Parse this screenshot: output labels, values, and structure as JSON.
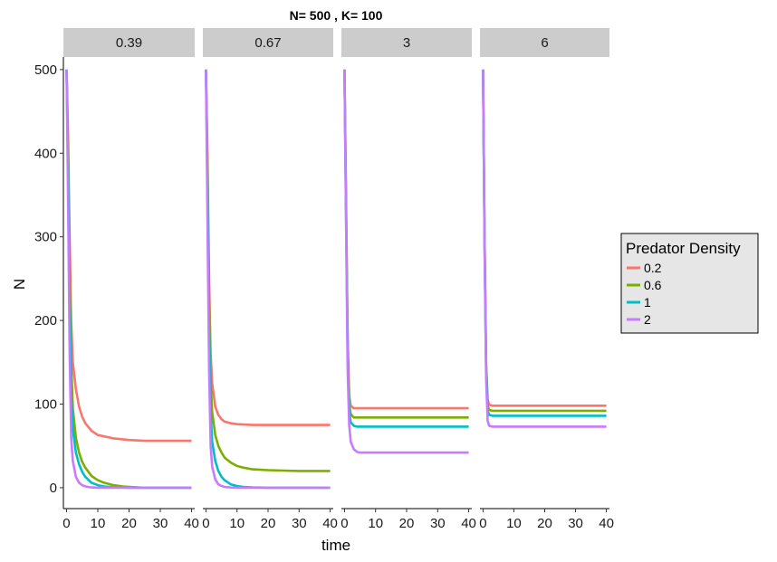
{
  "chart_data": {
    "type": "line",
    "title": "N= 500 , K= 100",
    "xlabel": "time",
    "ylabel": "N",
    "xlim": [
      -1,
      41
    ],
    "ylim": [
      -25,
      515
    ],
    "x_ticks": [
      0,
      10,
      20,
      30,
      40
    ],
    "y_ticks": [
      0,
      100,
      200,
      300,
      400,
      500
    ],
    "grid": false,
    "legend": {
      "title": "Predator Density",
      "placement": "right",
      "entries": [
        {
          "label": "0.2",
          "color": "#F8766D"
        },
        {
          "label": "0.6",
          "color": "#7CAE00"
        },
        {
          "label": "1",
          "color": "#00BFC4"
        },
        {
          "label": "2",
          "color": "#C77CFF"
        }
      ]
    },
    "facets": [
      {
        "label": "0.39",
        "series": [
          {
            "name": "0.2",
            "x": [
              0,
              0.5,
              1,
              1.5,
              2,
              3,
              4,
              5,
              6,
              8,
              10,
              15,
              20,
              25,
              30,
              40
            ],
            "y": [
              500,
              420,
              300,
              200,
              150,
              118,
              97,
              85,
              77,
              68,
              63,
              59,
              57,
              56,
              56,
              56
            ]
          },
          {
            "name": "0.6",
            "x": [
              0,
              0.5,
              1,
              1.5,
              2,
              3,
              4,
              5,
              6,
              8,
              10,
              12,
              15,
              18,
              20,
              25,
              30,
              40
            ],
            "y": [
              500,
              400,
              250,
              150,
              95,
              60,
              42,
              31,
              24,
              14,
              9,
              6,
              3,
              1.5,
              1,
              0,
              0,
              0
            ]
          },
          {
            "name": "1",
            "x": [
              0,
              0.5,
              1,
              1.5,
              2,
              3,
              4,
              5,
              6,
              8,
              10,
              12,
              15,
              20,
              25,
              40
            ],
            "y": [
              500,
              380,
              220,
              110,
              70,
              42,
              28,
              19,
              13,
              6,
              3,
              1.5,
              0.5,
              0,
              0,
              0
            ]
          },
          {
            "name": "2",
            "x": [
              0,
              0.5,
              1,
              1.5,
              2,
              3,
              4,
              5,
              6,
              8,
              10,
              15,
              20,
              40
            ],
            "y": [
              500,
              340,
              160,
              60,
              32,
              13,
              6,
              3,
              1.5,
              0.3,
              0,
              0,
              0,
              0
            ]
          }
        ]
      },
      {
        "label": "0.67",
        "series": [
          {
            "name": "0.2",
            "x": [
              0,
              0.5,
              1,
              1.5,
              2,
              3,
              4,
              5,
              6,
              8,
              10,
              15,
              20,
              25,
              30,
              40
            ],
            "y": [
              500,
              400,
              250,
              160,
              125,
              97,
              87,
              82,
              79,
              77,
              76,
              75,
              75,
              75,
              75,
              75
            ]
          },
          {
            "name": "0.6",
            "x": [
              0,
              0.5,
              1,
              1.5,
              2,
              3,
              4,
              5,
              6,
              8,
              10,
              12,
              15,
              20,
              25,
              30,
              40
            ],
            "y": [
              500,
              380,
              220,
              130,
              90,
              63,
              50,
              42,
              36,
              30,
              26,
              24,
              22,
              21,
              20.5,
              20,
              20
            ]
          },
          {
            "name": "1",
            "x": [
              0,
              0.5,
              1,
              1.5,
              2,
              3,
              4,
              5,
              6,
              8,
              10,
              12,
              15,
              20,
              25,
              40
            ],
            "y": [
              500,
              360,
              190,
              90,
              55,
              32,
              20,
              13,
              9,
              4,
              2,
              1,
              0.3,
              0,
              0,
              0
            ]
          },
          {
            "name": "2",
            "x": [
              0,
              0.5,
              1,
              1.5,
              2,
              3,
              4,
              5,
              6,
              8,
              10,
              15,
              20,
              40
            ],
            "y": [
              500,
              320,
              140,
              50,
              25,
              10,
              4,
              2,
              1,
              0.2,
              0,
              0,
              0,
              0
            ]
          }
        ]
      },
      {
        "label": "3",
        "series": [
          {
            "name": "0.2",
            "x": [
              0,
              0.5,
              1,
              1.5,
              2,
              3,
              4,
              5,
              40
            ],
            "y": [
              500,
              350,
              180,
              110,
              98,
              95,
              95,
              95,
              95
            ]
          },
          {
            "name": "0.6",
            "x": [
              0,
              0.5,
              1,
              1.5,
              2,
              3,
              4,
              5,
              40
            ],
            "y": [
              500,
              340,
              170,
              100,
              88,
              84,
              84,
              84,
              84
            ]
          },
          {
            "name": "1",
            "x": [
              0,
              0.5,
              1,
              1.5,
              2,
              3,
              4,
              5,
              40
            ],
            "y": [
              500,
              330,
              160,
              92,
              78,
              74,
              73,
              73,
              73
            ]
          },
          {
            "name": "2",
            "x": [
              0,
              0.5,
              1,
              1.5,
              2,
              3,
              4,
              5,
              6,
              8,
              40
            ],
            "y": [
              500,
              320,
              140,
              75,
              55,
              46,
              43,
              42,
              42,
              42,
              42
            ]
          }
        ]
      },
      {
        "label": "6",
        "series": [
          {
            "name": "0.2",
            "x": [
              0,
              0.5,
              1,
              1.5,
              2,
              3,
              40
            ],
            "y": [
              500,
              300,
              150,
              105,
              99,
              98,
              98
            ]
          },
          {
            "name": "0.6",
            "x": [
              0,
              0.5,
              1,
              1.5,
              2,
              3,
              40
            ],
            "y": [
              500,
              295,
              145,
              98,
              93,
              92,
              92
            ]
          },
          {
            "name": "1",
            "x": [
              0,
              0.5,
              1,
              1.5,
              2,
              3,
              40
            ],
            "y": [
              500,
              290,
              140,
              92,
              87,
              86,
              86
            ]
          },
          {
            "name": "2",
            "x": [
              0,
              0.5,
              1,
              1.5,
              2,
              3,
              40
            ],
            "y": [
              500,
              285,
              130,
              80,
              74,
              73,
              73
            ]
          }
        ]
      }
    ]
  }
}
